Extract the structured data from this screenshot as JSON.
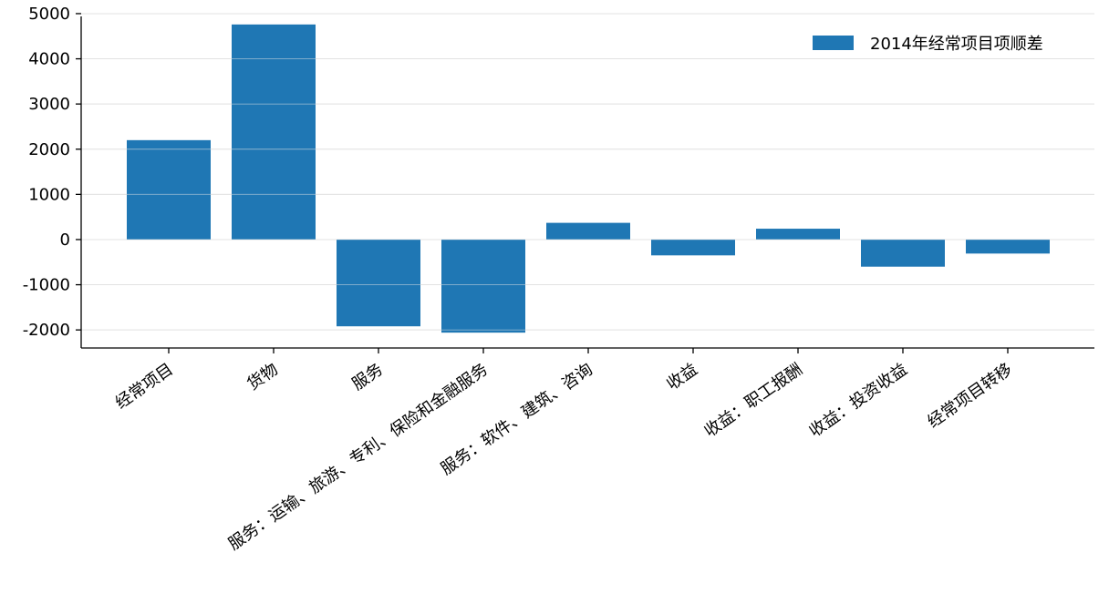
{
  "chart_data": {
    "type": "bar",
    "categories": [
      "经常项目",
      "货物",
      "服务",
      "服务：运输、旅游、专利、保险和金融服务",
      "服务：软件、建筑、咨询",
      "收益",
      "收益：职工报酬",
      "收益：投资收益",
      "经常项目转移"
    ],
    "series": [
      {
        "name": "2014年经常项目项顺差",
        "values": [
          2200,
          4760,
          -1920,
          -2060,
          370,
          -350,
          240,
          -600,
          -310
        ]
      }
    ],
    "ylim": [
      -2400,
      5100
    ],
    "yticks": [
      5000,
      4000,
      3000,
      2000,
      1000,
      0,
      -1000,
      -2000
    ],
    "ytick_labels": [
      "5000",
      "4000",
      "3000",
      "2000",
      "1000",
      "0",
      "-1000",
      "-2000"
    ],
    "grid": true,
    "legend_position": "top-right",
    "colors": {
      "bar": "#1f77b4"
    }
  }
}
